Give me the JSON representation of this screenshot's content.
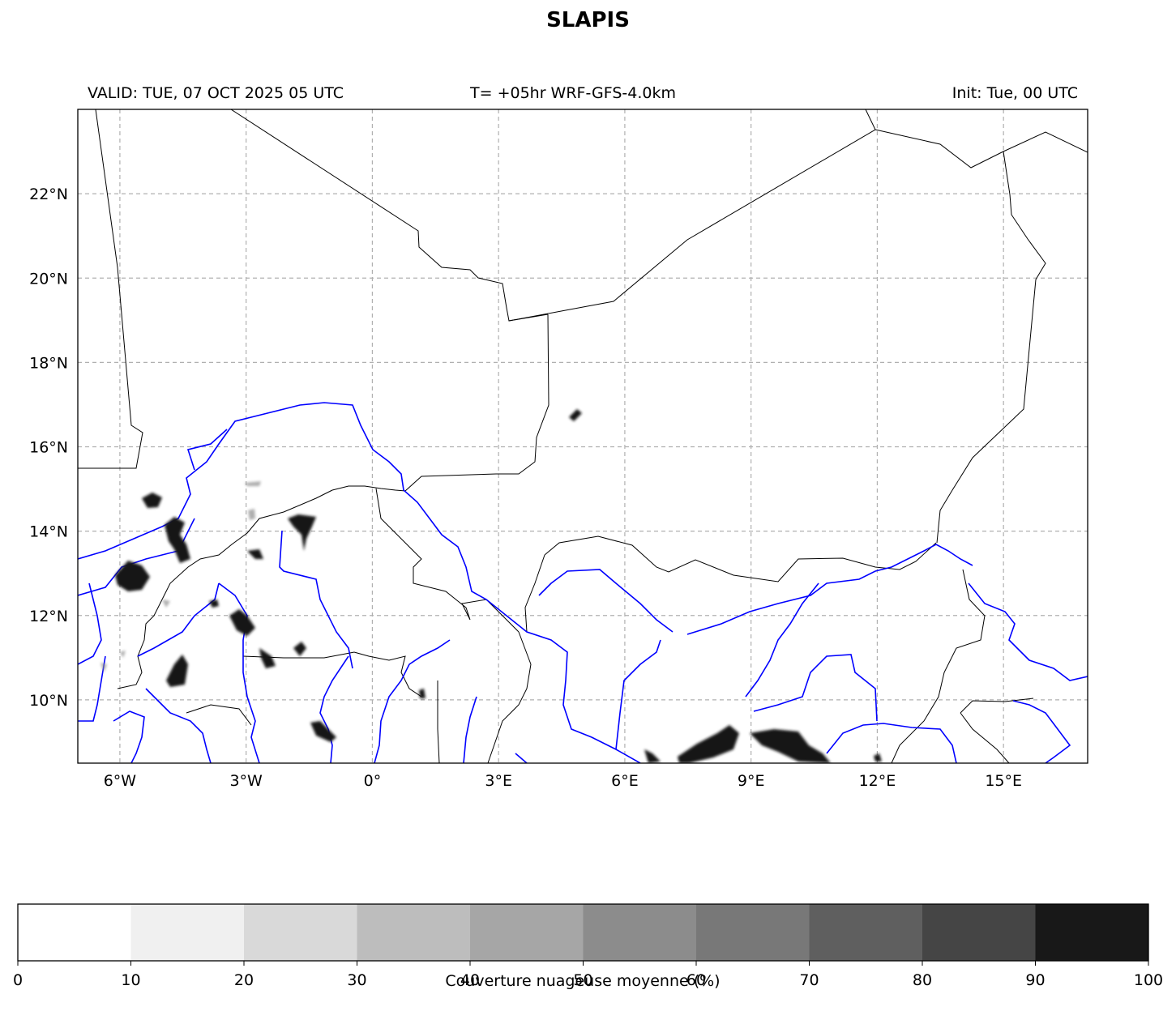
{
  "title": "SLAPIS",
  "subtitle_left": "VALID: TUE, 07 OCT 2025 05 UTC",
  "subtitle_center": "T= +05hr WRF-GFS-4.0km",
  "subtitle_right": "Init: Tue, 00 UTC",
  "map": {
    "lon_range": [
      -7,
      17
    ],
    "lat_range": [
      8.5,
      24
    ],
    "lon_ticks": [
      {
        "value": -6,
        "label": "6°W"
      },
      {
        "value": -3,
        "label": "3°W"
      },
      {
        "value": 0,
        "label": "0°"
      },
      {
        "value": 3,
        "label": "3°E"
      },
      {
        "value": 6,
        "label": "6°E"
      },
      {
        "value": 9,
        "label": "9°E"
      },
      {
        "value": 12,
        "label": "12°E"
      },
      {
        "value": 15,
        "label": "15°E"
      }
    ],
    "lat_ticks": [
      {
        "value": 10,
        "label": "10°N"
      },
      {
        "value": 12,
        "label": "12°N"
      },
      {
        "value": 14,
        "label": "14°N"
      },
      {
        "value": 16,
        "label": "16°N"
      },
      {
        "value": 18,
        "label": "18°N"
      },
      {
        "value": 20,
        "label": "20°N"
      },
      {
        "value": 22,
        "label": "22°N"
      }
    ],
    "gridlines": true,
    "border_color": "#000000",
    "river_color": "#0000ff"
  },
  "colorbar": {
    "label": "Couverture nuageuse moyenne (%)",
    "ticks": [
      0,
      10,
      20,
      30,
      40,
      50,
      60,
      70,
      80,
      90,
      100
    ],
    "colors": [
      "#ffffff",
      "#f0f0f0",
      "#d9d9d9",
      "#bdbdbd",
      "#a6a6a6",
      "#8c8c8c",
      "#787878",
      "#5f5f5f",
      "#454545",
      "#181818"
    ]
  }
}
